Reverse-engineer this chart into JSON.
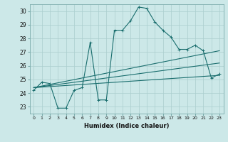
{
  "background_color": "#cce8e8",
  "grid_color": "#aacece",
  "line_color": "#1a6e6e",
  "xlabel": "Humidex (Indice chaleur)",
  "xlim": [
    -0.5,
    23.5
  ],
  "ylim": [
    22.5,
    30.5
  ],
  "xtick_labels": [
    "0",
    "1",
    "2",
    "3",
    "4",
    "5",
    "6",
    "7",
    "8",
    "9",
    "10",
    "11",
    "12",
    "13",
    "14",
    "15",
    "16",
    "17",
    "18",
    "19",
    "20",
    "21",
    "22",
    "23"
  ],
  "ytick_labels": [
    "23",
    "24",
    "25",
    "26",
    "27",
    "28",
    "29",
    "30"
  ],
  "line1_x": [
    0,
    1,
    2,
    3,
    4,
    5,
    6,
    7,
    8,
    9,
    10,
    11,
    12,
    13,
    14,
    15,
    16,
    17,
    18,
    19,
    20,
    21,
    22,
    23
  ],
  "line1_y": [
    24.2,
    24.8,
    24.7,
    22.9,
    22.9,
    24.2,
    24.4,
    27.7,
    23.5,
    23.5,
    28.6,
    28.6,
    29.3,
    30.3,
    30.2,
    29.2,
    28.6,
    28.1,
    27.2,
    27.2,
    27.5,
    27.1,
    25.1,
    25.4
  ],
  "line2_x": [
    0,
    23
  ],
  "line2_y": [
    24.4,
    27.1
  ],
  "line3_x": [
    0,
    23
  ],
  "line3_y": [
    24.4,
    26.2
  ],
  "line4_x": [
    0,
    23
  ],
  "line4_y": [
    24.4,
    25.3
  ]
}
